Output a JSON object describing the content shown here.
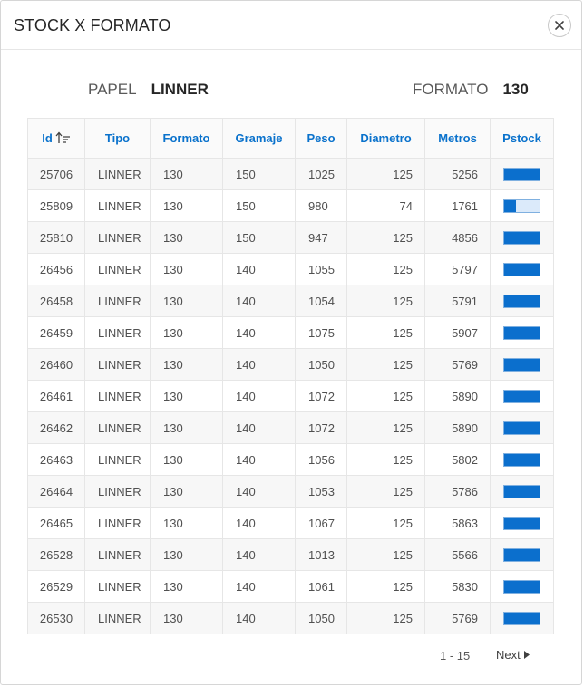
{
  "dialog": {
    "title": "STOCK X FORMATO",
    "close_icon": "close-icon"
  },
  "info": {
    "papel_label": "PAPEL",
    "papel_value": "LINNER",
    "formato_label": "FORMATO",
    "formato_value": "130"
  },
  "table": {
    "columns": [
      "Id",
      "Tipo",
      "Formato",
      "Gramaje",
      "Peso",
      "Diametro",
      "Metros",
      "Pstock"
    ],
    "sort_icon": "sort-ascending-icon",
    "rows": [
      {
        "id": "25706",
        "tipo": "LINNER",
        "formato": "130",
        "gramaje": "150",
        "peso": "1025",
        "diametro": "125",
        "metros": "5256",
        "pstock": 1.0
      },
      {
        "id": "25809",
        "tipo": "LINNER",
        "formato": "130",
        "gramaje": "150",
        "peso": "980",
        "diametro": "74",
        "metros": "1761",
        "pstock": 0.33
      },
      {
        "id": "25810",
        "tipo": "LINNER",
        "formato": "130",
        "gramaje": "150",
        "peso": "947",
        "diametro": "125",
        "metros": "4856",
        "pstock": 1.0
      },
      {
        "id": "26456",
        "tipo": "LINNER",
        "formato": "130",
        "gramaje": "140",
        "peso": "1055",
        "diametro": "125",
        "metros": "5797",
        "pstock": 1.0
      },
      {
        "id": "26458",
        "tipo": "LINNER",
        "formato": "130",
        "gramaje": "140",
        "peso": "1054",
        "diametro": "125",
        "metros": "5791",
        "pstock": 1.0
      },
      {
        "id": "26459",
        "tipo": "LINNER",
        "formato": "130",
        "gramaje": "140",
        "peso": "1075",
        "diametro": "125",
        "metros": "5907",
        "pstock": 1.0
      },
      {
        "id": "26460",
        "tipo": "LINNER",
        "formato": "130",
        "gramaje": "140",
        "peso": "1050",
        "diametro": "125",
        "metros": "5769",
        "pstock": 1.0
      },
      {
        "id": "26461",
        "tipo": "LINNER",
        "formato": "130",
        "gramaje": "140",
        "peso": "1072",
        "diametro": "125",
        "metros": "5890",
        "pstock": 1.0
      },
      {
        "id": "26462",
        "tipo": "LINNER",
        "formato": "130",
        "gramaje": "140",
        "peso": "1072",
        "diametro": "125",
        "metros": "5890",
        "pstock": 1.0
      },
      {
        "id": "26463",
        "tipo": "LINNER",
        "formato": "130",
        "gramaje": "140",
        "peso": "1056",
        "diametro": "125",
        "metros": "5802",
        "pstock": 1.0
      },
      {
        "id": "26464",
        "tipo": "LINNER",
        "formato": "130",
        "gramaje": "140",
        "peso": "1053",
        "diametro": "125",
        "metros": "5786",
        "pstock": 1.0
      },
      {
        "id": "26465",
        "tipo": "LINNER",
        "formato": "130",
        "gramaje": "140",
        "peso": "1067",
        "diametro": "125",
        "metros": "5863",
        "pstock": 1.0
      },
      {
        "id": "26528",
        "tipo": "LINNER",
        "formato": "130",
        "gramaje": "140",
        "peso": "1013",
        "diametro": "125",
        "metros": "5566",
        "pstock": 1.0
      },
      {
        "id": "26529",
        "tipo": "LINNER",
        "formato": "130",
        "gramaje": "140",
        "peso": "1061",
        "diametro": "125",
        "metros": "5830",
        "pstock": 1.0
      },
      {
        "id": "26530",
        "tipo": "LINNER",
        "formato": "130",
        "gramaje": "140",
        "peso": "1050",
        "diametro": "125",
        "metros": "5769",
        "pstock": 1.0
      }
    ]
  },
  "pagination": {
    "range": "1 - 15",
    "next_label": "Next",
    "next_icon": "triangle-right-icon"
  },
  "colors": {
    "accent": "#0a72cc",
    "bar_fill": "#0b6fcd",
    "bar_empty": "#dbeafa"
  }
}
